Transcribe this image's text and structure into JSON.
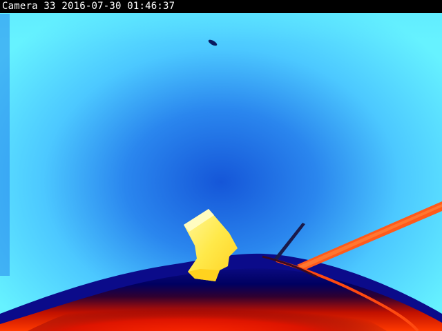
{
  "overlay": {
    "camera_label": "Camera 33",
    "timestamp": "2016-07-30 01:46:37"
  },
  "palette": {
    "sky_edge": "#66f2ff",
    "sky_center": "#1a6ee0",
    "horizon_dark": "#0a0a7a",
    "ground_red": "#ff2200",
    "hot_yellow": "#ffee55",
    "rail_orange": "#ff5a1a"
  }
}
